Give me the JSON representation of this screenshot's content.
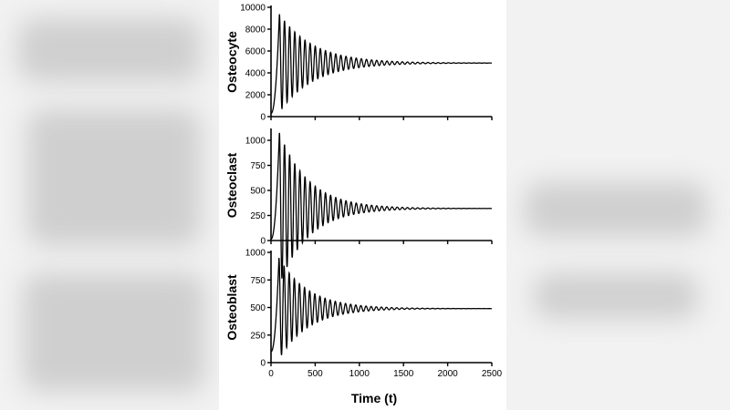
{
  "chart_data": [
    {
      "type": "line",
      "title": "",
      "ylabel": "Osteocyte",
      "xlabel": "",
      "xlim": [
        0,
        2500
      ],
      "ylim": [
        0,
        10000
      ],
      "yticks": [
        0,
        2000,
        4000,
        6000,
        8000,
        10000
      ],
      "ytick_labels": [
        "0",
        "2000",
        "4000",
        "6000",
        "8000",
        "10000"
      ],
      "xticks": [
        0,
        500,
        1000,
        1500,
        2000,
        2500
      ],
      "series": [
        {
          "name": "Osteocyte",
          "model": "damped oscillation",
          "initial": 300,
          "first_peak": 9400,
          "first_peak_t": 95,
          "steady_state": 4900,
          "period_t": 58,
          "decay_constant_t": 380
        }
      ]
    },
    {
      "type": "line",
      "title": "",
      "ylabel": "Osteoclast",
      "xlabel": "",
      "xlim": [
        0,
        2500
      ],
      "ylim": [
        0,
        1100
      ],
      "yticks": [
        0,
        250,
        500,
        750,
        1000
      ],
      "ytick_labels": [
        "0",
        "250",
        "500",
        "750",
        "1000"
      ],
      "xticks": [
        0,
        500,
        1000,
        1500,
        2000,
        2500
      ],
      "series": [
        {
          "name": "Osteoclast",
          "model": "damped oscillation",
          "initial": 15,
          "first_peak": 1080,
          "first_peak_t": 95,
          "steady_state": 320,
          "period_t": 58,
          "decay_constant_t": 330
        }
      ]
    },
    {
      "type": "line",
      "title": "",
      "ylabel": "Osteoblast",
      "xlabel": "Time (t)",
      "xlim": [
        0,
        2500
      ],
      "ylim": [
        0,
        1000
      ],
      "yticks": [
        0,
        250,
        500,
        750,
        1000
      ],
      "ytick_labels": [
        "0",
        "250",
        "500",
        "750",
        "1000"
      ],
      "xticks": [
        0,
        500,
        1000,
        1500,
        2000,
        2500
      ],
      "xtick_labels": [
        "0",
        "500",
        "1000",
        "1500",
        "2000",
        "2500"
      ],
      "series": [
        {
          "name": "Osteoblast",
          "model": "damped oscillation",
          "initial": 100,
          "first_peak": 950,
          "first_peak_t": 90,
          "steady_state": 490,
          "period_t": 58,
          "decay_constant_t": 330
        }
      ]
    }
  ]
}
